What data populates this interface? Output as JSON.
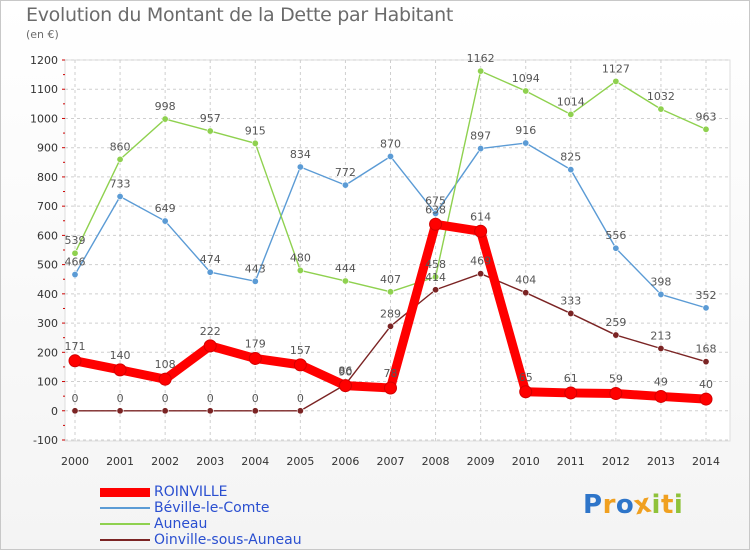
{
  "header": {
    "title": "Evolution du Montant de la Dette par Habitant",
    "unit": "(en €)"
  },
  "chart_data": {
    "type": "line",
    "title": "Evolution du Montant de la Dette par Habitant",
    "ylabel": "(en €)",
    "xlabel": "",
    "x": [
      "2000",
      "2001",
      "2002",
      "2003",
      "2004",
      "2005",
      "2006",
      "2007",
      "2008",
      "2009",
      "2010",
      "2011",
      "2012",
      "2013",
      "2014"
    ],
    "ylim": [
      -100,
      1200
    ],
    "yticks": [
      -100,
      0,
      100,
      200,
      300,
      400,
      500,
      600,
      700,
      800,
      900,
      1000,
      1100,
      1200
    ],
    "grid": true,
    "legend_position": "bottom-left",
    "series": [
      {
        "name": "ROINVILLE",
        "color": "#ff0000",
        "values": [
          171,
          140,
          108,
          222,
          179,
          157,
          86,
          78,
          638,
          614,
          65,
          61,
          59,
          49,
          40
        ]
      },
      {
        "name": "Béville-le-Comte",
        "color": "#5b9bd5",
        "values": [
          466,
          733,
          649,
          474,
          443,
          834,
          772,
          870,
          675,
          897,
          916,
          825,
          556,
          398,
          352
        ]
      },
      {
        "name": "Auneau",
        "color": "#8fd14f",
        "values": [
          539,
          860,
          998,
          957,
          915,
          480,
          444,
          407,
          458,
          1162,
          1094,
          1014,
          1127,
          1032,
          963
        ]
      },
      {
        "name": "Oinville-sous-Auneau",
        "color": "#7b2424",
        "values": [
          0,
          0,
          0,
          0,
          0,
          0,
          90,
          289,
          414,
          469,
          404,
          333,
          259,
          213,
          168
        ]
      }
    ]
  },
  "legend": {
    "items": [
      {
        "label": "ROINVILLE",
        "color": "#ff0000"
      },
      {
        "label": "Béville-le-Comte",
        "color": "#5b9bd5"
      },
      {
        "label": "Auneau",
        "color": "#8fd14f"
      },
      {
        "label": "Oinville-sous-Auneau",
        "color": "#7b2424"
      }
    ]
  },
  "logo": {
    "letters": [
      "P",
      "r",
      "o",
      "x",
      "i",
      "t",
      "i"
    ],
    "colors": [
      "#2e75c9",
      "#f0a020",
      "#2e75c9",
      "#f0a020",
      "#8fc23a",
      "#f0a020",
      "#8fc23a"
    ]
  }
}
